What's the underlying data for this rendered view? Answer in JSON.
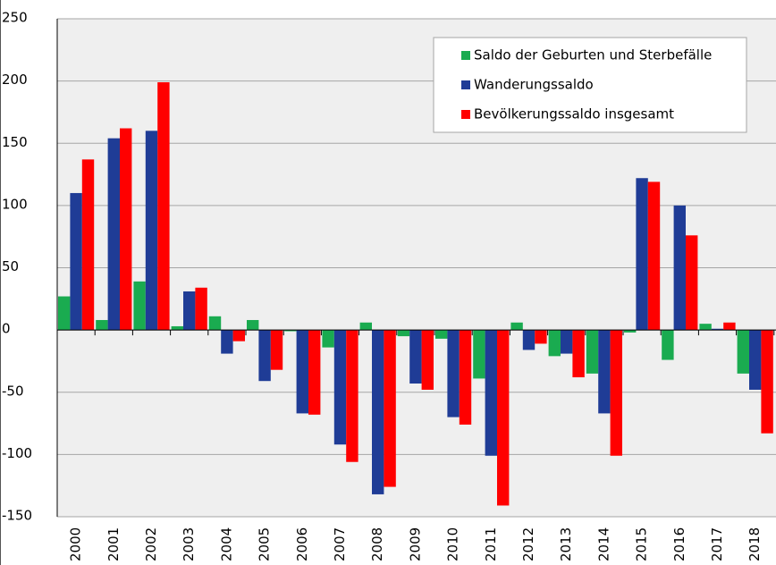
{
  "chart_data": {
    "type": "bar",
    "categories": [
      "2000",
      "2001",
      "2002",
      "2003",
      "2004",
      "2005",
      "2006",
      "2007",
      "2008",
      "2009",
      "2010",
      "2011",
      "2012",
      "2013",
      "2014",
      "2015",
      "2016",
      "2017",
      "2018"
    ],
    "series": [
      {
        "name": "Saldo der Geburten und Sterbefälle",
        "color": "#1aab50",
        "values": [
          27,
          8,
          39,
          3,
          11,
          8,
          -1,
          -14,
          6,
          -5,
          -7,
          -39,
          6,
          -21,
          -35,
          -2,
          -24,
          5,
          -35
        ]
      },
      {
        "name": "Wanderungssaldo",
        "color": "#1f3c96",
        "values": [
          110,
          154,
          160,
          31,
          -19,
          -41,
          -67,
          -92,
          -132,
          -43,
          -70,
          -101,
          -16,
          -19,
          -67,
          122,
          100,
          1,
          -48
        ]
      },
      {
        "name": "Bevölkerungssaldo insgesamt",
        "color": "#ff0000",
        "values": [
          137,
          162,
          199,
          34,
          -9,
          -32,
          -68,
          -106,
          -126,
          -48,
          -76,
          -141,
          -11,
          -38,
          -101,
          119,
          76,
          6,
          -83
        ]
      }
    ],
    "ylim": [
      -150,
      250
    ],
    "yticks": [
      -150,
      -100,
      -50,
      0,
      50,
      100,
      150,
      200,
      250
    ],
    "grid": true,
    "legend": "upper right"
  }
}
